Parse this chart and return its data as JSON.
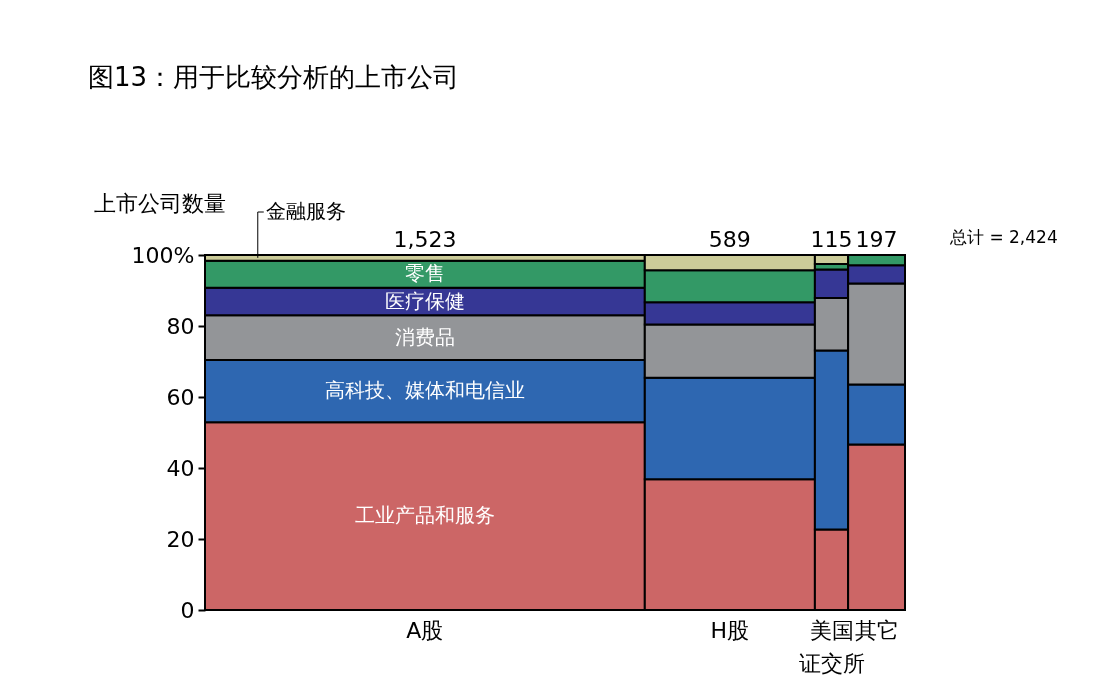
{
  "chart_data": {
    "type": "bar",
    "title": "图13：用于比较分析的上市公司",
    "ylabel": "上市公司数量",
    "categories": [
      "A股",
      "H股",
      "美国证交所",
      "其它"
    ],
    "stacked": true,
    "series": [
      {
        "name": "工业产品和服务",
        "color": "#cc6666",
        "values": [
          52.9,
          36.8,
          22.7,
          46.6
        ]
      },
      {
        "name": "高科技、媒体和电信业",
        "color": "#2e67b1",
        "values": [
          17.5,
          28.6,
          50.4,
          16.9
        ]
      },
      {
        "name": "消费品",
        "color": "#939598",
        "values": [
          12.6,
          15.0,
          14.8,
          28.5
        ]
      },
      {
        "name": "医疗保健",
        "color": "#363795",
        "values": [
          7.8,
          6.3,
          8.0,
          5.1
        ]
      },
      {
        "name": "零售",
        "color": "#339966",
        "values": [
          7.6,
          9.0,
          1.6,
          2.9
        ]
      },
      {
        "name": "金融服务",
        "color": "#cccc99",
        "values": [
          1.6,
          4.3,
          2.5,
          null
        ]
      }
    ],
    "annotations": [
      {
        "text": "1,523",
        "x": "A股",
        "y": 100
      },
      {
        "text": "589",
        "x": "H股",
        "y": 100
      },
      {
        "text": "115",
        "x": "美国证交所",
        "y": 100
      },
      {
        "text": "197",
        "x": "其它",
        "y": 100
      },
      "总计 = 2,424"
    ],
    "ylim": [
      0,
      100
    ],
    "yticks": [
      0,
      20,
      40,
      60,
      80,
      {
        "value": 100,
        "label": "100%"
      }
    ]
  }
}
